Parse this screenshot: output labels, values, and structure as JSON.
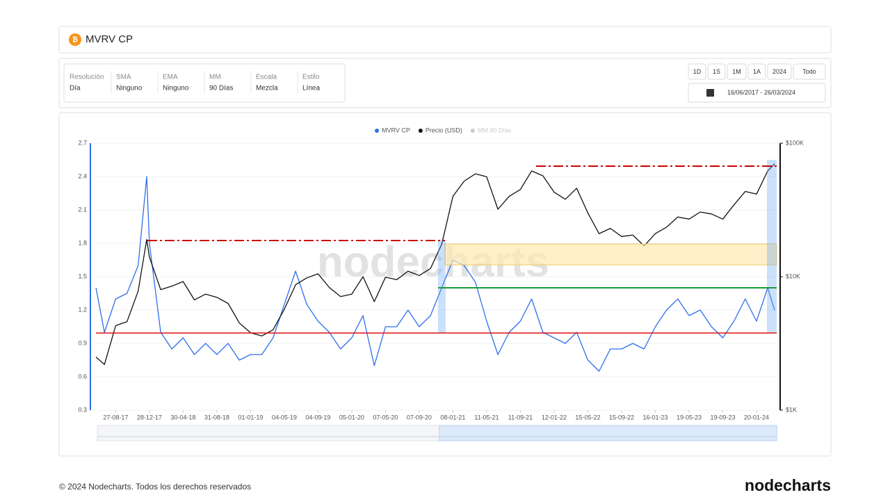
{
  "header": {
    "title": "MVRV CP"
  },
  "settings": [
    {
      "label": "Resolución",
      "value": "Día"
    },
    {
      "label": "SMA",
      "value": "Ninguno"
    },
    {
      "label": "EMA",
      "value": "Ninguno"
    },
    {
      "label": "MM",
      "value": "90 Días"
    },
    {
      "label": "Escala",
      "value": "Mezcla"
    },
    {
      "label": "Estilo",
      "value": "Línea"
    }
  ],
  "range_buttons": [
    "1D",
    "1S",
    "1M",
    "1A",
    "2024",
    "Todo"
  ],
  "date_range": "16/06/2017 - 26/03/2024",
  "watermark": "nodecharts",
  "footer": {
    "copyright": "© 2024 Nodecharts. Todos los derechos reservados",
    "logo": "nodecharts"
  },
  "chart_data": {
    "type": "line",
    "x": [
      "16-06-17",
      "17-07-17",
      "27-08-17",
      "07-10-17",
      "17-11-17",
      "18-12-17",
      "28-12-17",
      "07-02-18",
      "20-03-18",
      "30-04-18",
      "10-06-18",
      "21-07-18",
      "31-08-18",
      "11-10-18",
      "21-11-18",
      "01-01-19",
      "11-02-19",
      "24-03-19",
      "04-05-19",
      "14-06-19",
      "25-07-19",
      "04-09-19",
      "15-10-19",
      "25-11-19",
      "05-01-20",
      "15-02-20",
      "27-03-20",
      "07-05-20",
      "17-06-20",
      "28-07-20",
      "07-09-20",
      "18-10-20",
      "28-11-20",
      "08-01-21",
      "18-02-21",
      "31-03-21",
      "11-05-21",
      "21-06-21",
      "01-08-21",
      "11-09-21",
      "22-10-21",
      "02-12-21",
      "12-01-22",
      "22-02-22",
      "04-04-22",
      "15-05-22",
      "25-06-22",
      "05-08-22",
      "15-09-22",
      "26-10-22",
      "06-12-22",
      "16-01-23",
      "26-02-23",
      "08-04-23",
      "19-05-23",
      "29-06-23",
      "09-08-23",
      "19-09-23",
      "30-10-23",
      "10-12-23",
      "20-01-24",
      "01-03-24",
      "26-03-24"
    ],
    "xlim": [
      "16-06-17",
      "26-03-24"
    ],
    "xticks": [
      "27-08-17",
      "28-12-17",
      "30-04-18",
      "31-08-18",
      "01-01-19",
      "04-05-19",
      "04-09-19",
      "05-01-20",
      "07-05-20",
      "07-09-20",
      "08-01-21",
      "11-05-21",
      "11-09-21",
      "12-01-22",
      "15-05-22",
      "15-09-22",
      "16-01-23",
      "19-05-23",
      "19-09-23",
      "20-01-24"
    ],
    "ylim": [
      0.3,
      2.7
    ],
    "yticks": [
      0.3,
      0.6,
      0.9,
      1.2,
      1.5,
      1.8,
      2.1,
      2.4,
      2.7
    ],
    "y2lim": [
      1000,
      100000
    ],
    "y2scale": "log",
    "y2ticks": [
      {
        "value": 1000,
        "label": "$1K"
      },
      {
        "value": 10000,
        "label": "$10K"
      },
      {
        "value": 100000,
        "label": "$100K"
      }
    ],
    "series": [
      {
        "name": "MVRV CP",
        "color": "#2f6fe8",
        "values": [
          1.4,
          1.0,
          1.3,
          1.35,
          1.6,
          2.4,
          1.8,
          1.0,
          0.85,
          0.95,
          0.8,
          0.9,
          0.8,
          0.9,
          0.75,
          0.8,
          0.8,
          0.95,
          1.25,
          1.55,
          1.25,
          1.1,
          1.0,
          0.85,
          0.95,
          1.15,
          0.7,
          1.05,
          1.05,
          1.2,
          1.05,
          1.15,
          1.4,
          1.65,
          1.6,
          1.45,
          1.1,
          0.8,
          1.0,
          1.1,
          1.3,
          1.0,
          0.95,
          0.9,
          1.0,
          0.75,
          0.65,
          0.85,
          0.85,
          0.9,
          0.85,
          1.05,
          1.2,
          1.3,
          1.15,
          1.2,
          1.05,
          0.95,
          1.1,
          1.3,
          1.1,
          1.4,
          1.2
        ]
      },
      {
        "name": "Precio (USD)",
        "color": "#111111",
        "axis": "y2",
        "values": [
          2500,
          2200,
          4300,
          4600,
          7800,
          19000,
          14000,
          8000,
          8500,
          9200,
          6700,
          7400,
          7000,
          6300,
          4500,
          3800,
          3600,
          4000,
          5700,
          8700,
          9800,
          10500,
          8300,
          7100,
          7400,
          10000,
          6500,
          9900,
          9500,
          11000,
          10200,
          11500,
          17500,
          40000,
          52000,
          59000,
          56000,
          32000,
          40000,
          45000,
          62000,
          57000,
          43000,
          38000,
          46000,
          30000,
          21000,
          23000,
          20000,
          20500,
          17000,
          21000,
          23500,
          28000,
          27000,
          30500,
          29500,
          27000,
          34500,
          43500,
          41500,
          62000,
          70000
        ]
      }
    ],
    "hidden_series": [
      {
        "name": "MM 90 Días",
        "color": "#cccccc"
      }
    ]
  }
}
